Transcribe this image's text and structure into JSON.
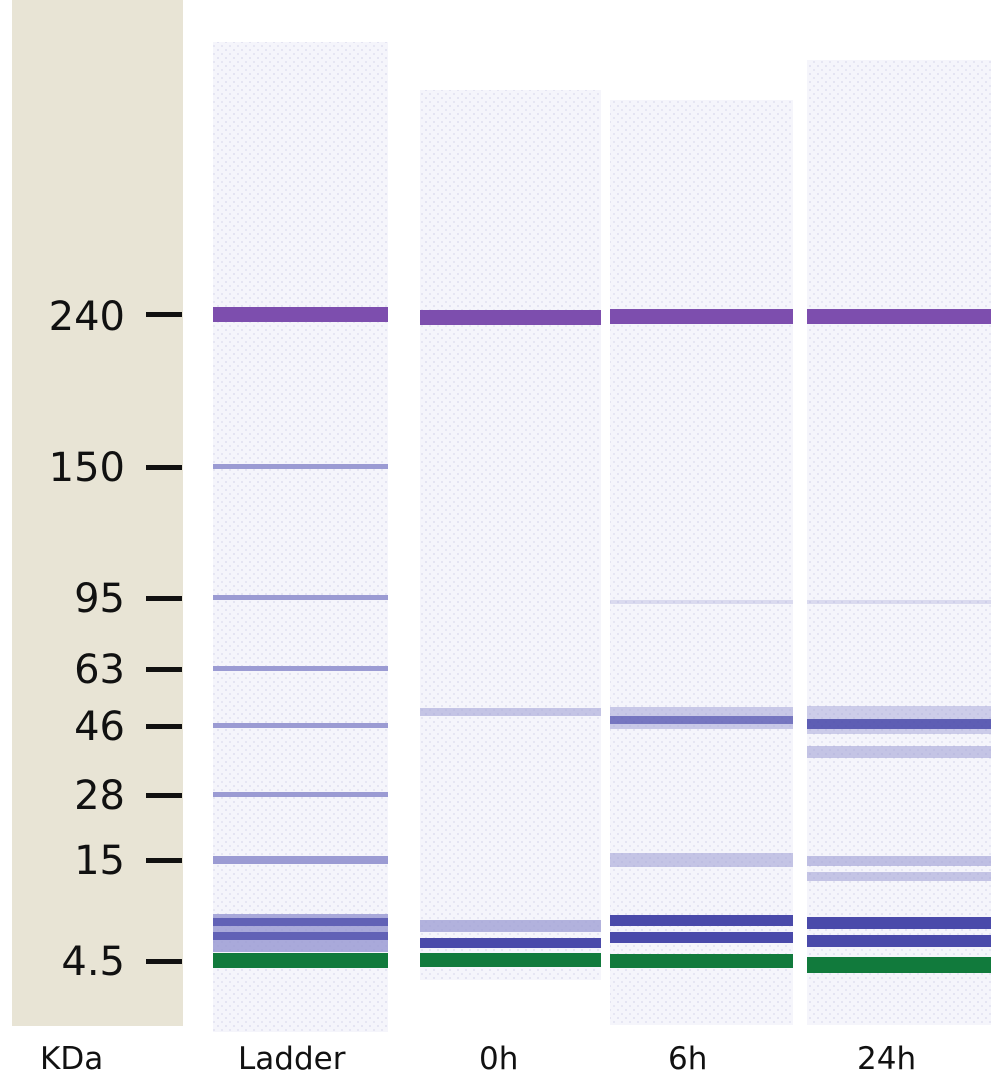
{
  "figure": {
    "colors": {
      "marker_panel": "#e8e4d5",
      "lane_background": "#f1f1f9",
      "band_purple": "#7d4eae",
      "band_blue": "#4a4aaa",
      "band_light": "#9b9bd3",
      "band_green": "#117a3c",
      "text": "#111111"
    },
    "axis_unit": "KDa",
    "markers": [
      "240",
      "150",
      "95",
      "63",
      "46",
      "28",
      "15",
      "4.5"
    ],
    "lanes": [
      "Ladder",
      "0h",
      "6h",
      "24h"
    ]
  }
}
